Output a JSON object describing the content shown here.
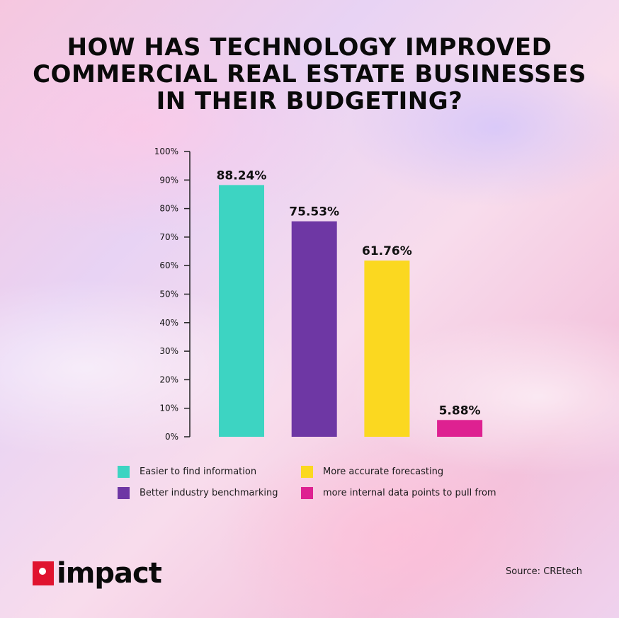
{
  "title_lines": [
    "HOW HAS TECHNOLOGY IMPROVED",
    "COMMERCIAL REAL ESTATE BUSINESSES",
    "IN THEIR BUDGETING?"
  ],
  "chart_data": {
    "type": "bar",
    "categories": [
      "Easier to find information",
      "Better industry benchmarking",
      "More accurate forecasting",
      "more internal data points to pull from"
    ],
    "values": [
      88.24,
      75.53,
      61.76,
      5.88
    ],
    "value_labels": [
      "88.24%",
      "75.53%",
      "61.76%",
      "5.88%"
    ],
    "colors": [
      "#3dd4c2",
      "#6e37a4",
      "#fbd820",
      "#de2191"
    ],
    "yticks": [
      "0%",
      "10%",
      "20%",
      "30%",
      "40%",
      "50%",
      "60%",
      "70%",
      "80%",
      "90%",
      "100%"
    ],
    "ylim": [
      0,
      100
    ],
    "grid": false,
    "legend_position": "bottom"
  },
  "brand": {
    "name": "impact"
  },
  "source": "Source: CREtech"
}
